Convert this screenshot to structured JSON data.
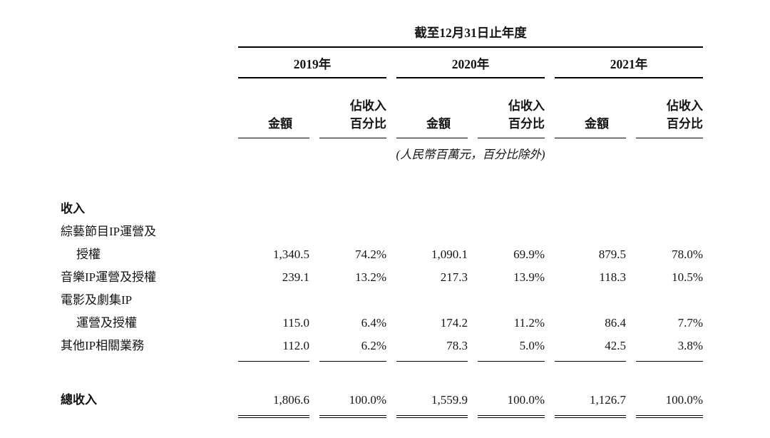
{
  "table": {
    "period_header": "截至12月31日止年度",
    "years": [
      "2019年",
      "2020年",
      "2021年"
    ],
    "column_headers": {
      "amount": "金額",
      "percent_line1": "佔收入",
      "percent_line2": "百分比"
    },
    "unit_note": "(人民幣百萬元，百分比除外)",
    "section_header": "收入",
    "rows": [
      {
        "label_line1": "綜藝節目IP運營及",
        "label_line2": "授權",
        "values": [
          "1,340.5",
          "74.2%",
          "1,090.1",
          "69.9%",
          "879.5",
          "78.0%"
        ]
      },
      {
        "label": "音樂IP運營及授權",
        "values": [
          "239.1",
          "13.2%",
          "217.3",
          "13.9%",
          "118.3",
          "10.5%"
        ]
      },
      {
        "label_line1": "電影及劇集IP",
        "label_line2": "運營及授權",
        "values": [
          "115.0",
          "6.4%",
          "174.2",
          "11.2%",
          "86.4",
          "7.7%"
        ]
      },
      {
        "label": "其他IP相關業務",
        "values": [
          "112.0",
          "6.2%",
          "78.3",
          "5.0%",
          "42.5",
          "3.8%"
        ]
      }
    ],
    "total_row": {
      "label": "總收入",
      "values": [
        "1,806.6",
        "100.0%",
        "1,559.9",
        "100.0%",
        "1,126.7",
        "100.0%"
      ]
    }
  }
}
